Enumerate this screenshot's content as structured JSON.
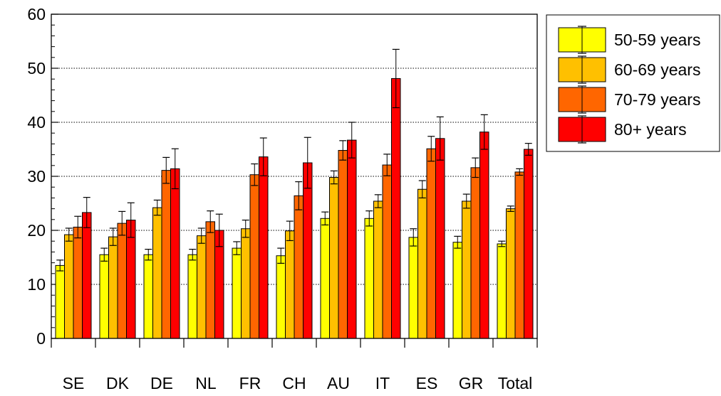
{
  "chart_data": {
    "type": "bar",
    "title": "",
    "xlabel": "",
    "ylabel": "",
    "ylim": [
      0,
      60
    ],
    "yticks": [
      0,
      10,
      20,
      30,
      40,
      50,
      60
    ],
    "y_minor_step": 2,
    "grid": "horizontal dotted",
    "legend_position": "right",
    "error_bars": true,
    "categories": [
      "SE",
      "DK",
      "DE",
      "NL",
      "FR",
      "CH",
      "AU",
      "IT",
      "ES",
      "GR",
      "Total"
    ],
    "series": [
      {
        "name": "50-59 years",
        "color": "#ffff00",
        "values": [
          13.5,
          15.5,
          15.5,
          15.5,
          16.7,
          15.3,
          22.2,
          22.2,
          18.7,
          17.8,
          17.5
        ],
        "error": [
          1.0,
          1.2,
          1.0,
          1.0,
          1.2,
          1.4,
          1.2,
          1.4,
          1.6,
          1.1,
          0.5
        ]
      },
      {
        "name": "60-69 years",
        "color": "#ffc000",
        "values": [
          19.2,
          18.8,
          24.2,
          19.0,
          20.3,
          19.9,
          29.8,
          25.4,
          27.6,
          25.4,
          24.0
        ],
        "error": [
          1.2,
          1.6,
          1.4,
          1.4,
          1.6,
          1.8,
          1.2,
          1.2,
          1.6,
          1.3,
          0.5
        ]
      },
      {
        "name": "70-79 years",
        "color": "#ff6600",
        "values": [
          20.6,
          21.3,
          31.1,
          21.6,
          30.3,
          26.4,
          34.8,
          32.1,
          35.1,
          31.6,
          30.8
        ],
        "error": [
          2.0,
          2.2,
          2.4,
          2.0,
          2.0,
          2.6,
          1.8,
          2.0,
          2.3,
          1.8,
          0.6
        ]
      },
      {
        "name": "80+ years",
        "color": "#ff0000",
        "values": [
          23.3,
          21.9,
          31.4,
          20.0,
          33.6,
          32.5,
          36.7,
          48.1,
          37.0,
          38.2,
          35.0
        ],
        "error": [
          2.8,
          3.2,
          3.7,
          3.0,
          3.5,
          4.7,
          3.3,
          5.4,
          4.0,
          3.2,
          1.1
        ]
      }
    ]
  }
}
